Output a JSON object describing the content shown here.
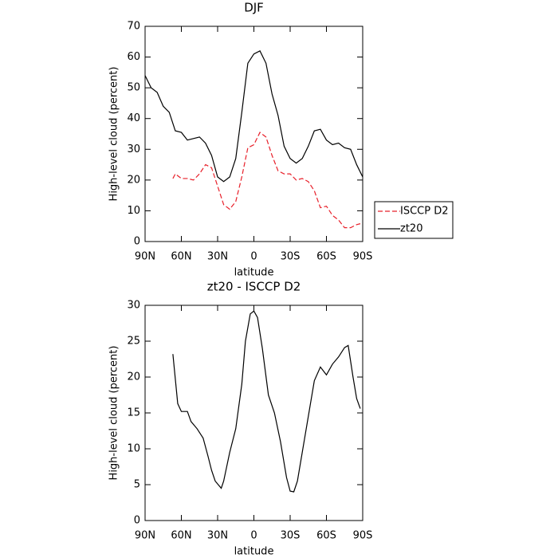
{
  "chart_data": [
    {
      "type": "line",
      "title": "DJF",
      "xlabel": "latitude",
      "ylabel": "High-level cloud (percent)",
      "xlim": [
        90,
        -90
      ],
      "xticks": [
        {
          "value": 90,
          "label": "90N"
        },
        {
          "value": 60,
          "label": "60N"
        },
        {
          "value": 30,
          "label": "30N"
        },
        0,
        {
          "value": -30,
          "label": "30S"
        },
        {
          "value": -60,
          "label": "60S"
        },
        {
          "value": -90,
          "label": "90S"
        }
      ],
      "ylim": [
        0,
        70
      ],
      "yticks": [
        0,
        10,
        20,
        30,
        40,
        50,
        60,
        70
      ],
      "legend": "right",
      "series": [
        {
          "name": "ISCCP D2",
          "color": "#e8202a",
          "dash": true,
          "x": [
            67,
            65,
            60,
            55,
            50,
            45,
            40,
            35,
            30,
            25,
            20,
            15,
            10,
            5,
            0,
            -5,
            -10,
            -15,
            -20,
            -25,
            -30,
            -35,
            -40,
            -45,
            -50,
            -55,
            -60,
            -65,
            -70,
            -75,
            -80,
            -85,
            -88
          ],
          "values": [
            20.5,
            22,
            20.5,
            20.5,
            20,
            22,
            25,
            24,
            18,
            12,
            10.5,
            13,
            21,
            30.5,
            31.5,
            35.5,
            34,
            28,
            23,
            22,
            22,
            20,
            20.5,
            19.5,
            16.5,
            11,
            11.5,
            8.5,
            7,
            4.5,
            4.5,
            5.5,
            5.8
          ]
        },
        {
          "name": "zt20",
          "color": "#000000",
          "dash": false,
          "x": [
            90,
            85,
            80,
            75,
            70,
            65,
            60,
            55,
            50,
            45,
            40,
            35,
            30,
            25,
            20,
            15,
            10,
            5,
            0,
            -5,
            -10,
            -15,
            -20,
            -25,
            -30,
            -35,
            -40,
            -45,
            -50,
            -55,
            -60,
            -65,
            -70,
            -75,
            -80,
            -85,
            -90
          ],
          "values": [
            54,
            50,
            48.5,
            44,
            42,
            36,
            35.5,
            33,
            33.5,
            34,
            32,
            28,
            21,
            19.5,
            21,
            27,
            42,
            58,
            61,
            62,
            58,
            48,
            41,
            31,
            27,
            25.5,
            27,
            31,
            36,
            36.5,
            33,
            31.5,
            32,
            30.5,
            30,
            25,
            21
          ]
        }
      ]
    },
    {
      "type": "line",
      "title": "zt20 - ISCCP D2",
      "xlabel": "latitude",
      "ylabel": "High-level cloud (percent)",
      "xlim": [
        90,
        -90
      ],
      "xticks": [
        {
          "value": 90,
          "label": "90N"
        },
        {
          "value": 60,
          "label": "60N"
        },
        {
          "value": 30,
          "label": "30N"
        },
        0,
        {
          "value": -30,
          "label": "30S"
        },
        {
          "value": -60,
          "label": "60S"
        },
        {
          "value": -90,
          "label": "90S"
        }
      ],
      "ylim": [
        0,
        30
      ],
      "yticks": [
        0,
        5,
        10,
        15,
        20,
        25,
        30
      ],
      "series": [
        {
          "color": "#000000",
          "dash": false,
          "x": [
            67,
            63,
            60,
            55,
            52,
            47,
            42,
            38,
            35,
            32,
            27,
            25,
            20,
            15,
            10,
            7,
            3,
            0,
            -3,
            -7,
            -12,
            -17,
            -22,
            -27,
            -30,
            -33,
            -36,
            -40,
            -45,
            -50,
            -55,
            -60,
            -65,
            -70,
            -75,
            -78,
            -82,
            -85,
            -88
          ],
          "values": [
            23.2,
            16.3,
            15.2,
            15.2,
            13.8,
            12.8,
            11.5,
            9,
            7,
            5.5,
            4.5,
            5.5,
            9.5,
            12.8,
            19,
            25,
            28.8,
            29.2,
            28.3,
            24,
            17.5,
            15,
            11,
            6,
            4.1,
            4,
            5.5,
            9.5,
            14.5,
            19.5,
            21.4,
            20.3,
            21.8,
            22.8,
            24.1,
            24.4,
            20,
            17,
            15.6
          ]
        }
      ]
    }
  ]
}
